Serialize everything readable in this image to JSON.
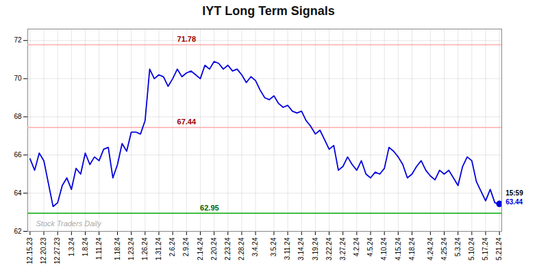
{
  "chart_data": {
    "type": "line",
    "title": "IYT Long Term Signals",
    "categories": [
      "12.15.23",
      null,
      null,
      "12.20.23",
      null,
      null,
      "12.27.23",
      null,
      null,
      "1.3.24",
      null,
      null,
      "1.8.24",
      null,
      null,
      "1.11.24",
      null,
      null,
      null,
      "1.18.24",
      null,
      null,
      "1.23.24",
      null,
      null,
      "1.26.24",
      null,
      null,
      "1.31.24",
      null,
      null,
      "2.6.24",
      null,
      null,
      "2.9.24",
      null,
      null,
      "2.14.24",
      null,
      null,
      "2.20.24",
      null,
      null,
      "2.23.24",
      null,
      null,
      "2.28.24",
      null,
      null,
      "3.4.24",
      null,
      null,
      null,
      "3.5.24",
      null,
      null,
      "3.11.24",
      null,
      null,
      "3.14.24",
      null,
      null,
      "3.19.24",
      null,
      null,
      "3.22.24",
      null,
      null,
      "3.27.24",
      null,
      null,
      "4.2.24",
      null,
      null,
      "4.5.24",
      null,
      null,
      "4.10.24",
      null,
      null,
      "4.15.24",
      null,
      null,
      "4.18.24",
      null,
      null,
      null,
      "4.24.24",
      null,
      null,
      "4.25.24",
      null,
      null,
      "5.3.24",
      null,
      null,
      "5.10.24",
      null,
      null,
      "5.17.24",
      null,
      null,
      "5.21.24"
    ],
    "values": [
      65.8,
      65.2,
      66.1,
      65.7,
      64.5,
      63.3,
      63.5,
      64.4,
      64.8,
      64.2,
      65.3,
      65.0,
      66.1,
      65.5,
      65.9,
      65.7,
      66.3,
      66.4,
      64.8,
      65.5,
      66.6,
      66.2,
      67.2,
      67.2,
      67.1,
      67.8,
      70.5,
      70.0,
      70.2,
      70.1,
      69.6,
      70.0,
      70.5,
      70.1,
      70.3,
      70.4,
      70.2,
      70.0,
      70.7,
      70.5,
      70.9,
      70.8,
      70.5,
      70.7,
      70.4,
      70.5,
      70.2,
      69.8,
      70.1,
      69.9,
      69.4,
      69.0,
      68.9,
      69.1,
      68.7,
      68.5,
      68.6,
      68.3,
      68.2,
      68.3,
      67.8,
      67.5,
      67.1,
      67.3,
      66.8,
      66.3,
      66.5,
      65.2,
      65.4,
      65.9,
      65.5,
      65.2,
      65.7,
      65.0,
      64.8,
      65.1,
      65.0,
      65.3,
      66.4,
      66.2,
      65.9,
      65.5,
      64.8,
      65.0,
      65.4,
      65.7,
      65.2,
      64.9,
      64.7,
      65.2,
      65.0,
      65.2,
      64.8,
      64.4,
      65.4,
      65.9,
      65.7,
      64.6,
      64.1,
      63.6,
      64.2,
      63.5,
      63.44
    ],
    "color": "#0000dd",
    "ylim": [
      62.0,
      72.6
    ],
    "yticks": [
      62,
      64,
      66,
      68,
      70,
      72
    ],
    "grid": true,
    "reference_lines": [
      {
        "y": 71.78,
        "label": "71.78",
        "color": "#ffaaaa",
        "label_color": "#990000"
      },
      {
        "y": 67.44,
        "label": "67.44",
        "color": "#ffaaaa",
        "label_color": "#990000"
      },
      {
        "y": 62.95,
        "label": "62.95",
        "color": "#00aa00",
        "label_color": "#006600"
      }
    ],
    "last_point": {
      "value": 63.44,
      "color": "#0000dd",
      "labels": [
        {
          "text": "15:59",
          "color": "#000000"
        },
        {
          "text": "63.44",
          "color": "#0000dd"
        }
      ]
    },
    "watermark": {
      "text": "Stock Traders Daily",
      "color": "#aaaaaa"
    }
  }
}
